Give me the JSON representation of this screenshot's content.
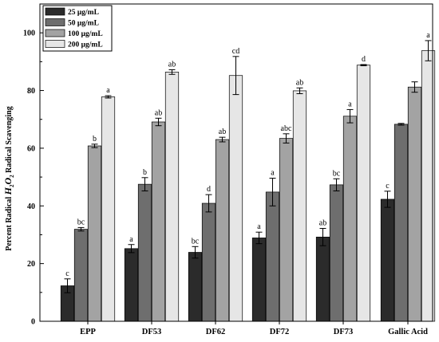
{
  "chart_data": {
    "type": "bar",
    "ylabel_parts": [
      "Percent Radical ",
      "H",
      "2",
      "O",
      "2",
      " Radical Scavenging"
    ],
    "xlabel": "",
    "ylim": [
      0,
      100
    ],
    "yticks": [
      "0",
      "20",
      "40",
      "60",
      "80",
      "100"
    ],
    "categories": [
      "EPP",
      "DF53",
      "DF62",
      "DF72",
      "DF73",
      "Gallic Acid"
    ],
    "legend_position": "top-left",
    "series": [
      {
        "name": "25 μg/mL",
        "color": "#2b2b2b",
        "values": [
          12.3,
          25.2,
          23.9,
          28.9,
          29.2,
          42.3
        ],
        "errors": [
          2.4,
          1.4,
          2.0,
          2.0,
          3.0,
          2.8
        ],
        "labels": [
          "c",
          "a",
          "bc",
          "a",
          "ab",
          "c"
        ]
      },
      {
        "name": "50 μg/mL",
        "color": "#6e6e6e",
        "values": [
          31.9,
          47.5,
          40.9,
          44.8,
          47.3,
          68.3
        ],
        "errors": [
          0.6,
          2.3,
          3.0,
          4.8,
          2.1,
          0.3
        ],
        "labels": [
          "bc",
          "b",
          "d",
          "a",
          "bc",
          ""
        ]
      },
      {
        "name": "100 μg/mL",
        "color": "#a3a3a3",
        "values": [
          60.8,
          69.1,
          63.0,
          63.4,
          71.1,
          81.2
        ],
        "errors": [
          0.6,
          1.3,
          0.8,
          1.6,
          2.3,
          1.8
        ],
        "labels": [
          "b",
          "ab",
          "ab",
          "abc",
          "a",
          ""
        ]
      },
      {
        "name": "200 μg/mL",
        "color": "#e6e6e6",
        "values": [
          77.8,
          86.4,
          85.2,
          79.9,
          88.8,
          93.8
        ],
        "errors": [
          0.4,
          0.8,
          6.6,
          1.0,
          0.2,
          3.5
        ],
        "labels": [
          "a",
          "ab",
          "cd",
          "ab",
          "d",
          "a"
        ]
      }
    ]
  }
}
